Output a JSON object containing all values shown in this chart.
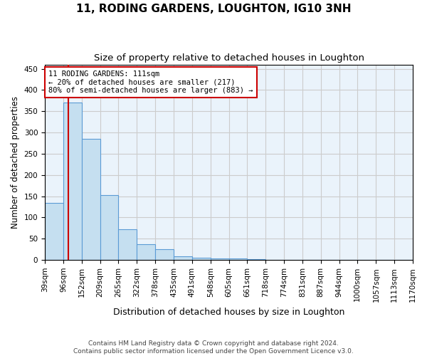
{
  "title": "11, RODING GARDENS, LOUGHTON, IG10 3NH",
  "subtitle": "Size of property relative to detached houses in Loughton",
  "xlabel": "Distribution of detached houses by size in Loughton",
  "ylabel": "Number of detached properties",
  "bar_values": [
    135,
    370,
    285,
    152,
    73,
    37,
    25,
    9,
    6,
    4,
    3,
    2,
    1,
    1,
    0,
    0,
    0,
    0,
    0,
    0
  ],
  "bin_edges": [
    39,
    96,
    152,
    209,
    265,
    322,
    378,
    435,
    491,
    548,
    605,
    661,
    718,
    774,
    831,
    887,
    944,
    1000,
    1057,
    1113,
    1170
  ],
  "bar_color": "#C5DFF0",
  "bar_edge_color": "#5B9BD5",
  "property_size": 111,
  "red_line_color": "#CC0000",
  "annotation_line1": "11 RODING GARDENS: 111sqm",
  "annotation_line2": "← 20% of detached houses are smaller (217)",
  "annotation_line3": "80% of semi-detached houses are larger (883) →",
  "annotation_box_color": "#ffffff",
  "annotation_box_edge": "#CC0000",
  "ylim": [
    0,
    460
  ],
  "yticks": [
    0,
    50,
    100,
    150,
    200,
    250,
    300,
    350,
    400,
    450
  ],
  "grid_color": "#cccccc",
  "bg_color": "#EAF3FB",
  "footer": "Contains HM Land Registry data © Crown copyright and database right 2024.\nContains public sector information licensed under the Open Government Licence v3.0.",
  "title_fontsize": 11,
  "subtitle_fontsize": 9.5,
  "xlabel_fontsize": 9,
  "ylabel_fontsize": 8.5,
  "tick_fontsize": 7.5,
  "annotation_fontsize": 7.5
}
